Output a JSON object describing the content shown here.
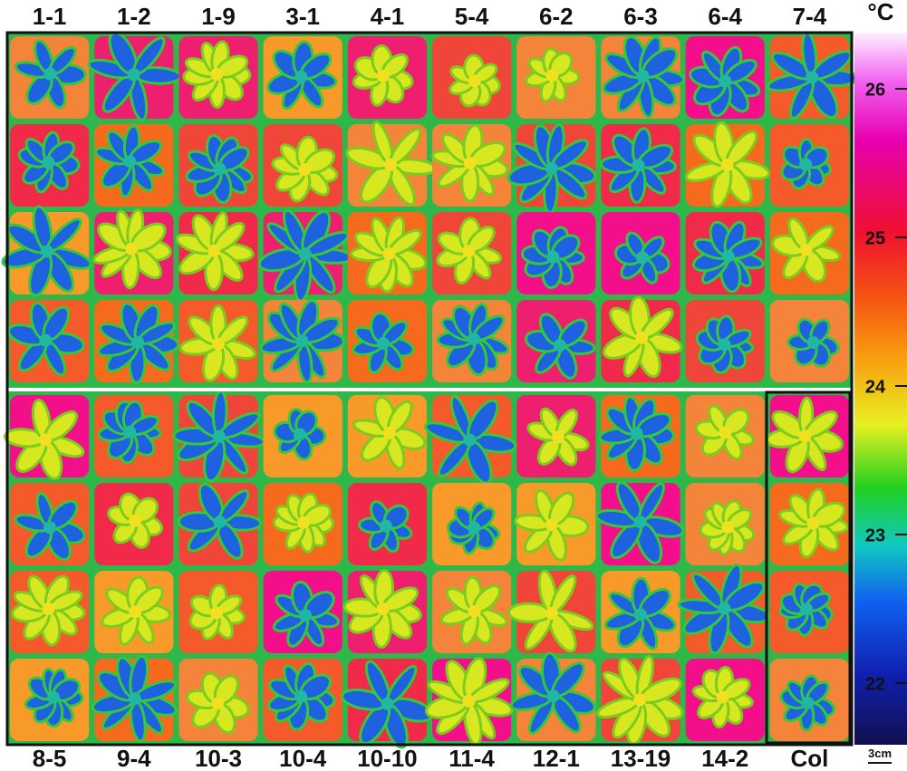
{
  "top_labels": [
    "1-1",
    "1-2",
    "1-9",
    "3-1",
    "4-1",
    "5-4",
    "6-2",
    "6-3",
    "6-4",
    "7-4"
  ],
  "bottom_labels": [
    "8-5",
    "9-4",
    "10-3",
    "10-4",
    "10-10",
    "11-4",
    "12-1",
    "13-19",
    "14-2",
    "Col"
  ],
  "colorbar": {
    "unit": "°C",
    "ticks": [
      26,
      25,
      24,
      23,
      22
    ]
  },
  "scale_bar": "3cm"
}
